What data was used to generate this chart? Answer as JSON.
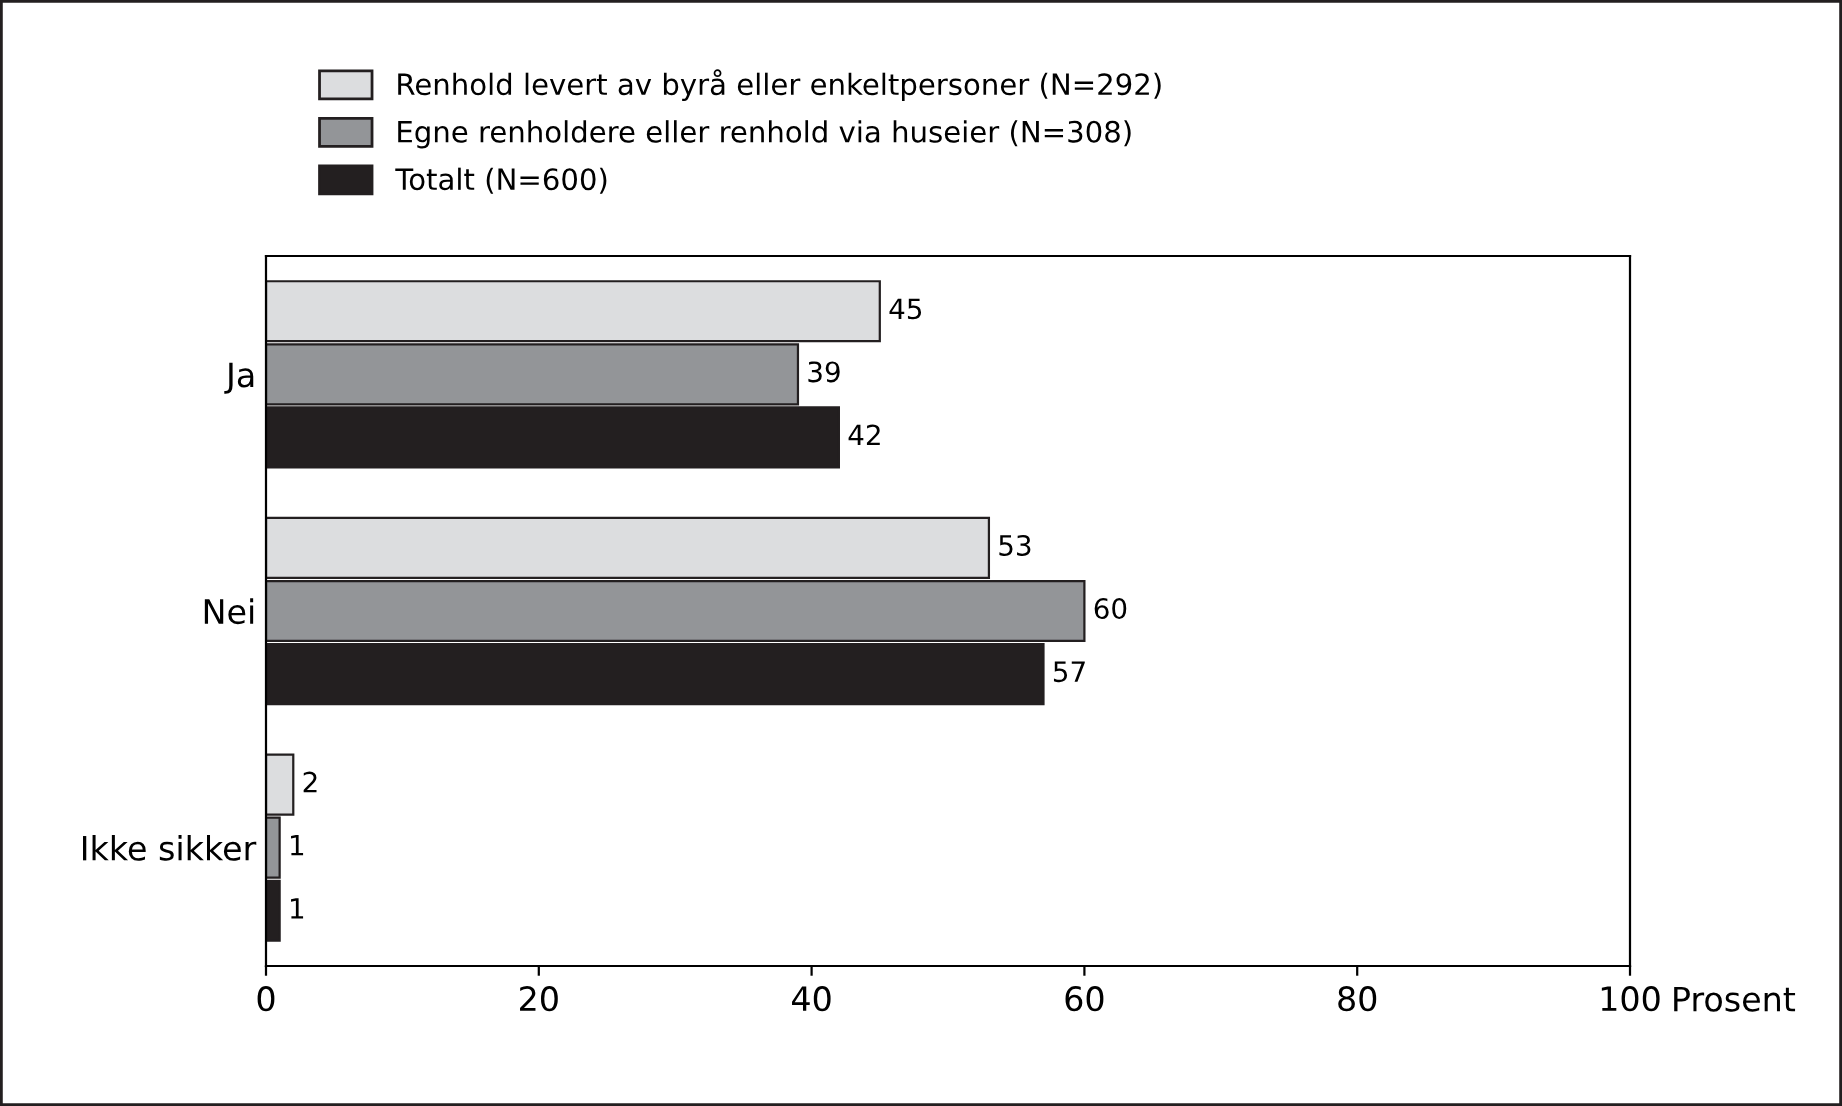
{
  "chart_data": {
    "type": "bar",
    "orientation": "horizontal",
    "categories": [
      "Ja",
      "Nei",
      "Ikke sikker"
    ],
    "series": [
      {
        "name": "Renhold levert av byrå eller enkeltpersoner (N=292)",
        "color": "#dcdddf",
        "values": [
          45,
          53,
          2
        ]
      },
      {
        "name": "Egne renholdere eller renhold via huseier (N=308)",
        "color": "#939598",
        "values": [
          39,
          60,
          1
        ]
      },
      {
        "name": "Totalt (N=600)",
        "color": "#231f20",
        "values": [
          42,
          57,
          1
        ]
      }
    ],
    "xlabel": "Prosent",
    "xlim": [
      0,
      100
    ],
    "xticks": [
      0,
      20,
      40,
      60,
      80,
      100
    ],
    "data_labels": true,
    "legend": "top",
    "grid": false
  }
}
